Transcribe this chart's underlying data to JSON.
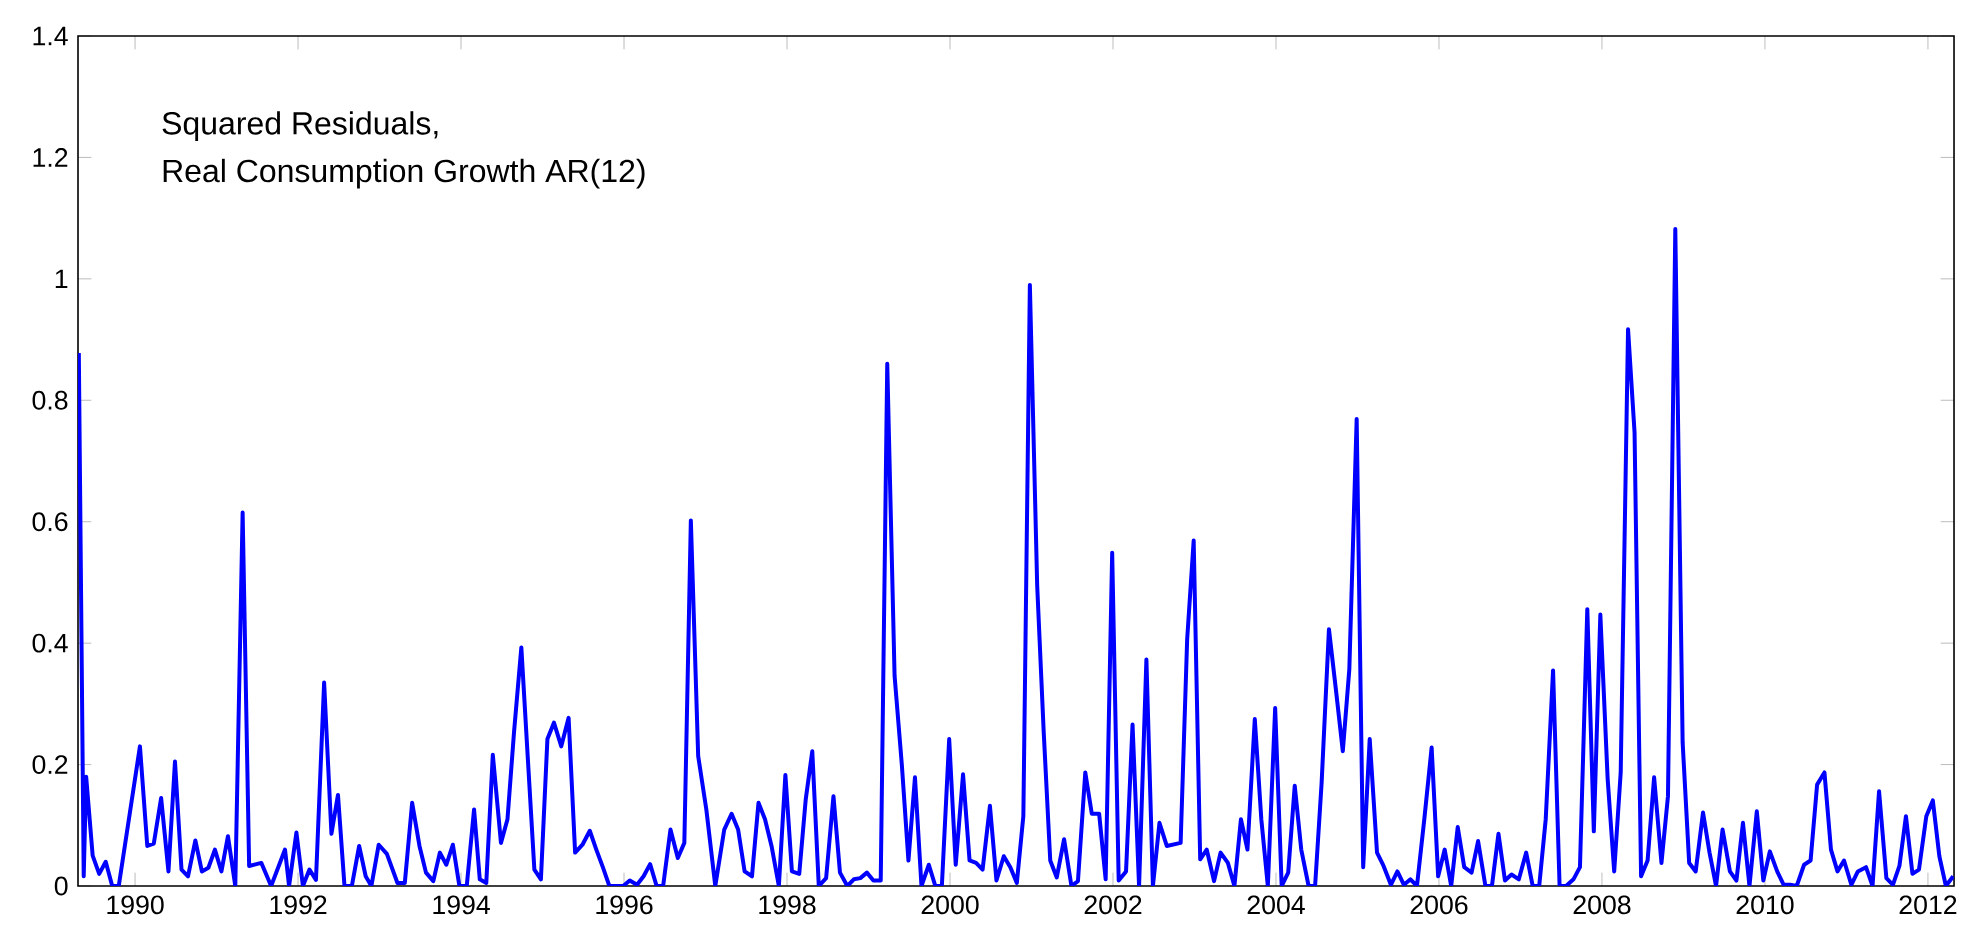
{
  "chart_data": {
    "type": "line",
    "title": "Squared Residuals,",
    "subtitle": "Real Consumption Growth AR(12)",
    "color": "#0000ff",
    "xlim": [
      1989.3,
      2012.32
    ],
    "ylim": [
      0,
      1.4
    ],
    "xticks": [
      1990,
      1992,
      1994,
      1996,
      1998,
      2000,
      2002,
      2004,
      2006,
      2008,
      2010,
      2012
    ],
    "yticks": [
      0,
      0.2,
      0.4,
      0.6,
      0.8,
      1,
      1.2,
      1.4
    ],
    "x": [
      1989.31,
      1989.37,
      1989.4,
      1989.48,
      1989.56,
      1989.64,
      1989.72,
      1989.8,
      1990.06,
      1990.15,
      1990.23,
      1990.32,
      1990.41,
      1990.49,
      1990.57,
      1990.65,
      1990.74,
      1990.82,
      1990.9,
      1990.98,
      1991.06,
      1991.14,
      1991.23,
      1991.32,
      1991.4,
      1991.55,
      1991.67,
      1991.84,
      1991.89,
      1991.98,
      1992.06,
      1992.14,
      1992.22,
      1992.32,
      1992.41,
      1992.49,
      1992.57,
      1992.66,
      1992.75,
      1992.83,
      1992.9,
      1992.99,
      1993.09,
      1993.22,
      1993.31,
      1993.4,
      1993.49,
      1993.57,
      1993.66,
      1993.74,
      1993.82,
      1993.9,
      1993.98,
      1994.07,
      1994.16,
      1994.23,
      1994.31,
      1994.39,
      1994.49,
      1994.57,
      1994.65,
      1994.74,
      1994.82,
      1994.9,
      1994.98,
      1995.06,
      1995.14,
      1995.23,
      1995.32,
      1995.4,
      1995.49,
      1995.58,
      1995.66,
      1995.74,
      1995.82,
      1995.9,
      1995.99,
      1996.07,
      1996.16,
      1996.24,
      1996.32,
      1996.4,
      1996.48,
      1996.57,
      1996.66,
      1996.74,
      1996.82,
      1996.91,
      1997.01,
      1997.12,
      1997.23,
      1997.32,
      1997.4,
      1997.48,
      1997.57,
      1997.65,
      1997.73,
      1997.81,
      1997.9,
      1997.98,
      1998.06,
      1998.15,
      1998.23,
      1998.31,
      1998.39,
      1998.48,
      1998.57,
      1998.65,
      1998.74,
      1998.82,
      1998.9,
      1998.98,
      1999.06,
      1999.15,
      1999.23,
      1999.32,
      1999.41,
      1999.49,
      1999.57,
      1999.65,
      1999.74,
      1999.82,
      1999.9,
      1999.99,
      2000.07,
      2000.16,
      2000.24,
      2000.32,
      2000.4,
      2000.49,
      2000.57,
      2000.66,
      2000.74,
      2000.82,
      2000.9,
      2000.98,
      2001.07,
      2001.15,
      2001.23,
      2001.31,
      2001.4,
      2001.49,
      2001.57,
      2001.66,
      2001.74,
      2001.83,
      2001.91,
      2001.99,
      2002.07,
      2002.16,
      2002.24,
      2002.32,
      2002.41,
      2002.49,
      2002.57,
      2002.66,
      2002.83,
      2002.91,
      2002.99,
      2003.07,
      2003.15,
      2003.24,
      2003.32,
      2003.41,
      2003.49,
      2003.57,
      2003.65,
      2003.74,
      2003.82,
      2003.9,
      2003.99,
      2004.07,
      2004.15,
      2004.23,
      2004.31,
      2004.4,
      2004.48,
      2004.56,
      2004.65,
      2004.74,
      2004.82,
      2004.9,
      2004.99,
      2005.07,
      2005.15,
      2005.24,
      2005.32,
      2005.41,
      2005.49,
      2005.57,
      2005.65,
      2005.73,
      2005.82,
      2005.91,
      2005.99,
      2006.07,
      2006.15,
      2006.23,
      2006.31,
      2006.4,
      2006.48,
      2006.57,
      2006.65,
      2006.73,
      2006.81,
      2006.89,
      2006.98,
      2007.07,
      2007.15,
      2007.23,
      2007.31,
      2007.4,
      2007.48,
      2007.56,
      2007.65,
      2007.73,
      2007.82,
      2007.9,
      2007.98,
      2008.07,
      2008.15,
      2008.23,
      2008.32,
      2008.4,
      2008.48,
      2008.56,
      2008.64,
      2008.73,
      2008.81,
      2008.9,
      2008.99,
      2009.07,
      2009.15,
      2009.24,
      2009.32,
      2009.4,
      2009.48,
      2009.57,
      2009.65,
      2009.73,
      2009.81,
      2009.9,
      2009.98,
      2010.06,
      2010.15,
      2010.23,
      2010.31,
      2010.39,
      2010.48,
      2010.56,
      2010.64,
      2010.73,
      2010.81,
      2010.89,
      2010.97,
      2011.06,
      2011.14,
      2011.24,
      2011.32,
      2011.4,
      2011.49,
      2011.57,
      2011.65,
      2011.73,
      2011.81,
      2011.89,
      2011.98,
      2012.06,
      2012.14,
      2012.22,
      2012.31
    ],
    "values": [
      0.878,
      0.016,
      0.18,
      0.05,
      0.02,
      0.04,
      0,
      0,
      0.23,
      0.066,
      0.07,
      0.145,
      0.024,
      0.205,
      0.027,
      0.016,
      0.075,
      0.024,
      0.03,
      0.06,
      0.024,
      0.082,
      0,
      0.615,
      0.033,
      0.038,
      0,
      0.06,
      0,
      0.088,
      0,
      0.027,
      0.01,
      0.335,
      0.086,
      0.15,
      0,
      0,
      0.066,
      0.016,
      0,
      0.068,
      0.053,
      0.005,
      0.005,
      0.137,
      0.066,
      0.022,
      0.008,
      0.055,
      0.035,
      0.068,
      0,
      0,
      0.126,
      0.011,
      0.005,
      0.216,
      0.071,
      0.11,
      0.253,
      0.393,
      0.209,
      0.027,
      0.011,
      0.242,
      0.269,
      0.23,
      0.277,
      0.055,
      0.068,
      0.091,
      0.06,
      0.031,
      0,
      0,
      0,
      0.009,
      0.002,
      0.016,
      0.036,
      0,
      0,
      0.093,
      0.046,
      0.071,
      0.602,
      0.214,
      0.126,
      0,
      0.093,
      0.119,
      0.093,
      0.024,
      0.016,
      0.137,
      0.11,
      0.066,
      0,
      0.183,
      0.024,
      0.02,
      0.143,
      0.222,
      0,
      0.013,
      0.148,
      0.022,
      0,
      0.011,
      0.013,
      0.022,
      0.009,
      0.009,
      0.86,
      0.346,
      0.198,
      0.042,
      0.179,
      0,
      0.035,
      0,
      0,
      0.242,
      0.035,
      0.184,
      0.042,
      0.038,
      0.027,
      0.132,
      0.009,
      0.049,
      0.031,
      0.005,
      0.115,
      0.99,
      0.494,
      0.253,
      0.042,
      0.014,
      0.077,
      0,
      0.008,
      0.187,
      0.119,
      0.119,
      0.011,
      0.549,
      0.009,
      0.024,
      0.266,
      0,
      0.373,
      0,
      0.104,
      0.066,
      0.071,
      0.406,
      0.569,
      0.044,
      0.06,
      0.008,
      0.055,
      0.038,
      0,
      0.11,
      0.06,
      0.275,
      0.11,
      0,
      0.293,
      0,
      0.022,
      0.165,
      0.06,
      0,
      0,
      0.17,
      0.423,
      0.318,
      0.222,
      0.357,
      0.769,
      0.031,
      0.242,
      0.055,
      0.033,
      0.002,
      0.024,
      0.002,
      0.011,
      0,
      0.11,
      0.228,
      0.016,
      0.06,
      0,
      0.097,
      0.031,
      0.022,
      0.074,
      0,
      0,
      0.086,
      0.009,
      0.019,
      0.011,
      0.055,
      0,
      0,
      0.11,
      0.355,
      0,
      0,
      0.011,
      0.031,
      0.456,
      0.09,
      0.447,
      0.176,
      0.024,
      0.187,
      0.917,
      0.747,
      0.016,
      0.042,
      0.179,
      0.038,
      0.148,
      1.082,
      0.236,
      0.038,
      0.024,
      0.121,
      0.055,
      0,
      0.093,
      0.024,
      0.009,
      0.104,
      0,
      0.123,
      0.009,
      0.057,
      0.024,
      0.002,
      0.002,
      0,
      0.035,
      0.042,
      0.167,
      0.187,
      0.06,
      0.024,
      0.042,
      0.002,
      0.024,
      0.031,
      0,
      0.156,
      0.013,
      0.002,
      0.033,
      0.115,
      0.02,
      0.027,
      0.115,
      0.141,
      0.049,
      0,
      0.016
    ]
  }
}
